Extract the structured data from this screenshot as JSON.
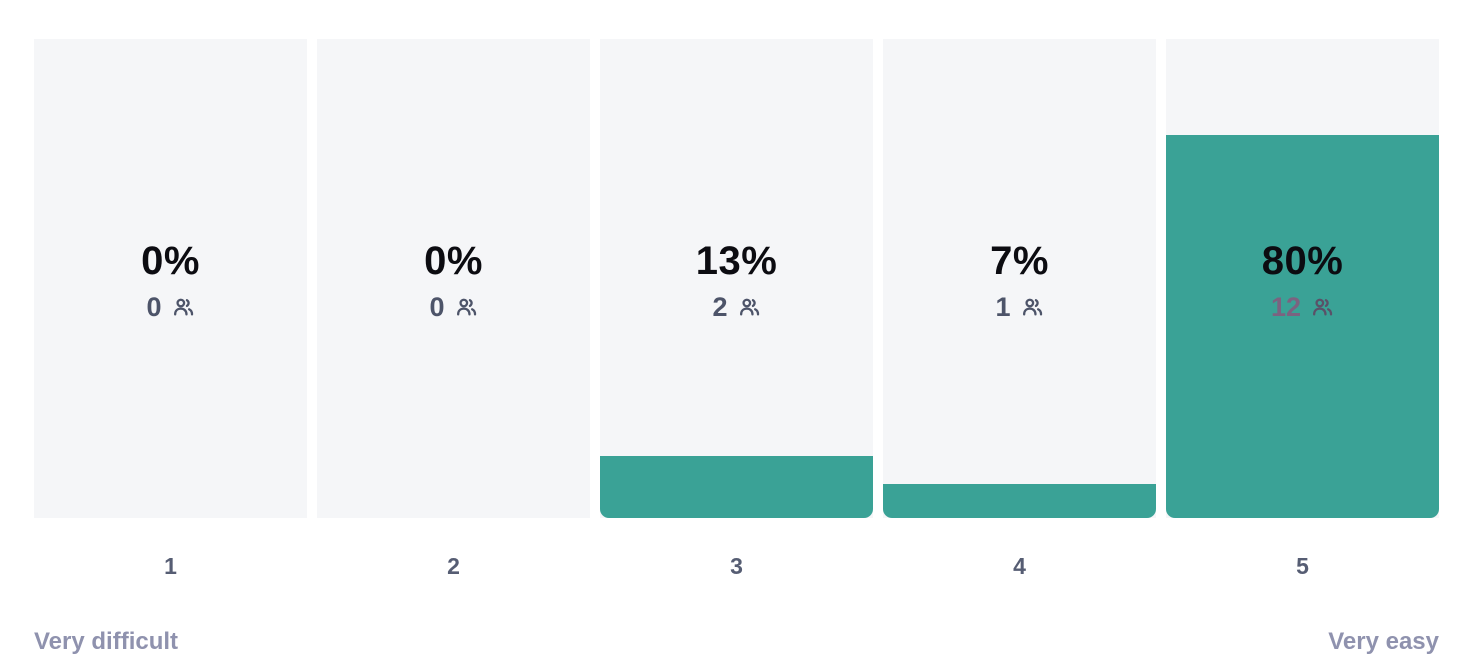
{
  "chart_data": {
    "type": "bar",
    "kind": "rating-distribution",
    "title": "",
    "categories": [
      "1",
      "2",
      "3",
      "4",
      "5"
    ],
    "series": [
      {
        "name": "percent_of_respondents",
        "values": [
          0,
          0,
          13,
          7,
          80
        ]
      },
      {
        "name": "respondent_count",
        "values": [
          0,
          0,
          2,
          1,
          12
        ]
      }
    ],
    "bars": [
      {
        "category": "1",
        "percent": 0,
        "percent_label": "0%",
        "count": 0,
        "count_label": "0"
      },
      {
        "category": "2",
        "percent": 0,
        "percent_label": "0%",
        "count": 0,
        "count_label": "0"
      },
      {
        "category": "3",
        "percent": 13,
        "percent_label": "13%",
        "count": 2,
        "count_label": "2"
      },
      {
        "category": "4",
        "percent": 7,
        "percent_label": "7%",
        "count": 1,
        "count_label": "1"
      },
      {
        "category": "5",
        "percent": 80,
        "percent_label": "80%",
        "count": 12,
        "count_label": "12"
      }
    ],
    "ylim": [
      0,
      100
    ],
    "grid": false,
    "legend": false,
    "x_axis": {
      "min_label": "Very difficult",
      "max_label": "Very easy"
    }
  },
  "icons": {
    "respondents": "users-icon"
  },
  "colors": {
    "fill": "#3aa296",
    "track": "#f5f6f8",
    "percent_text": "#0c0c11",
    "count_text": "#4d5469",
    "count_text_on_fill": "#7b6380",
    "icon_on_fill": "#5a5168",
    "category_text": "#565d73",
    "scale_text": "#8f92ae"
  }
}
